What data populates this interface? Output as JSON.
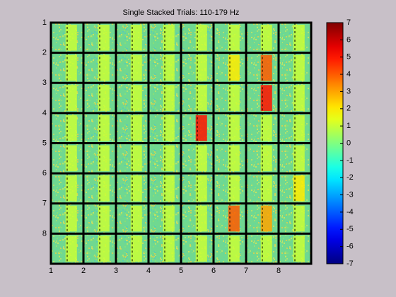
{
  "chart_data": {
    "type": "heatmap",
    "title": "Single Stacked Trials: 110-179 Hz",
    "xlim": [
      1,
      9
    ],
    "xticks": [
      1,
      2,
      3,
      4,
      5,
      6,
      7,
      8
    ],
    "ylim": [
      1,
      9
    ],
    "yticks": [
      1,
      2,
      3,
      4,
      5,
      6,
      7,
      8
    ],
    "y_reversed": true,
    "values": [
      [
        1,
        1,
        1,
        1,
        1,
        1,
        1,
        1
      ],
      [
        1,
        1,
        1,
        1,
        1,
        2,
        4,
        1
      ],
      [
        1,
        1,
        1,
        1,
        1,
        1,
        5,
        1
      ],
      [
        1,
        1,
        1,
        1,
        5,
        1,
        1,
        1
      ],
      [
        1,
        1,
        1,
        1,
        1,
        1,
        1,
        1
      ],
      [
        1,
        1,
        1,
        1,
        1,
        1,
        1,
        2
      ],
      [
        1,
        1,
        1,
        1,
        1,
        4,
        3,
        1
      ],
      [
        1,
        1,
        1,
        1,
        1,
        1,
        1,
        1
      ]
    ],
    "colorbar": {
      "clim": [
        -7,
        7
      ],
      "ticks": [
        7,
        6,
        5,
        4,
        3,
        2,
        1,
        0,
        -1,
        -2,
        -3,
        -4,
        -5,
        -6,
        -7
      ],
      "colormap": "jet"
    }
  }
}
